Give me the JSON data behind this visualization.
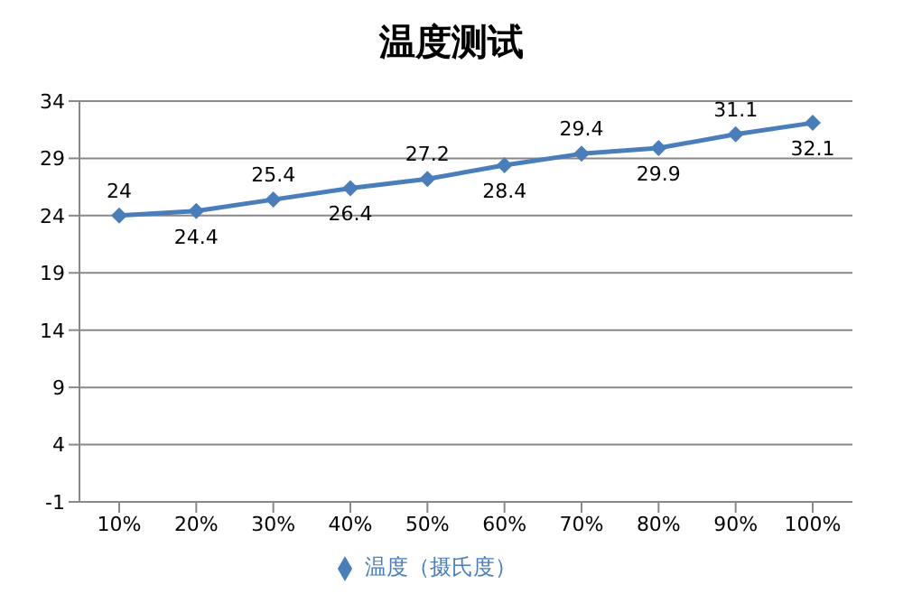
{
  "chart_data": {
    "type": "line",
    "title": "温度测试",
    "categories": [
      "10%",
      "20%",
      "30%",
      "40%",
      "50%",
      "60%",
      "70%",
      "80%",
      "90%",
      "100%"
    ],
    "series": [
      {
        "name": "温度（摄氏度）",
        "color": "#4a7ebb",
        "values": [
          24,
          24.4,
          25.4,
          26.4,
          27.2,
          28.4,
          29.4,
          29.9,
          31.1,
          32.1
        ]
      }
    ],
    "ylim": [
      -1,
      34
    ],
    "yticks": [
      -1,
      4,
      9,
      14,
      19,
      24,
      29,
      34
    ],
    "grid": "y",
    "legend": "bottom",
    "marker": "diamond",
    "data_labels": true
  }
}
